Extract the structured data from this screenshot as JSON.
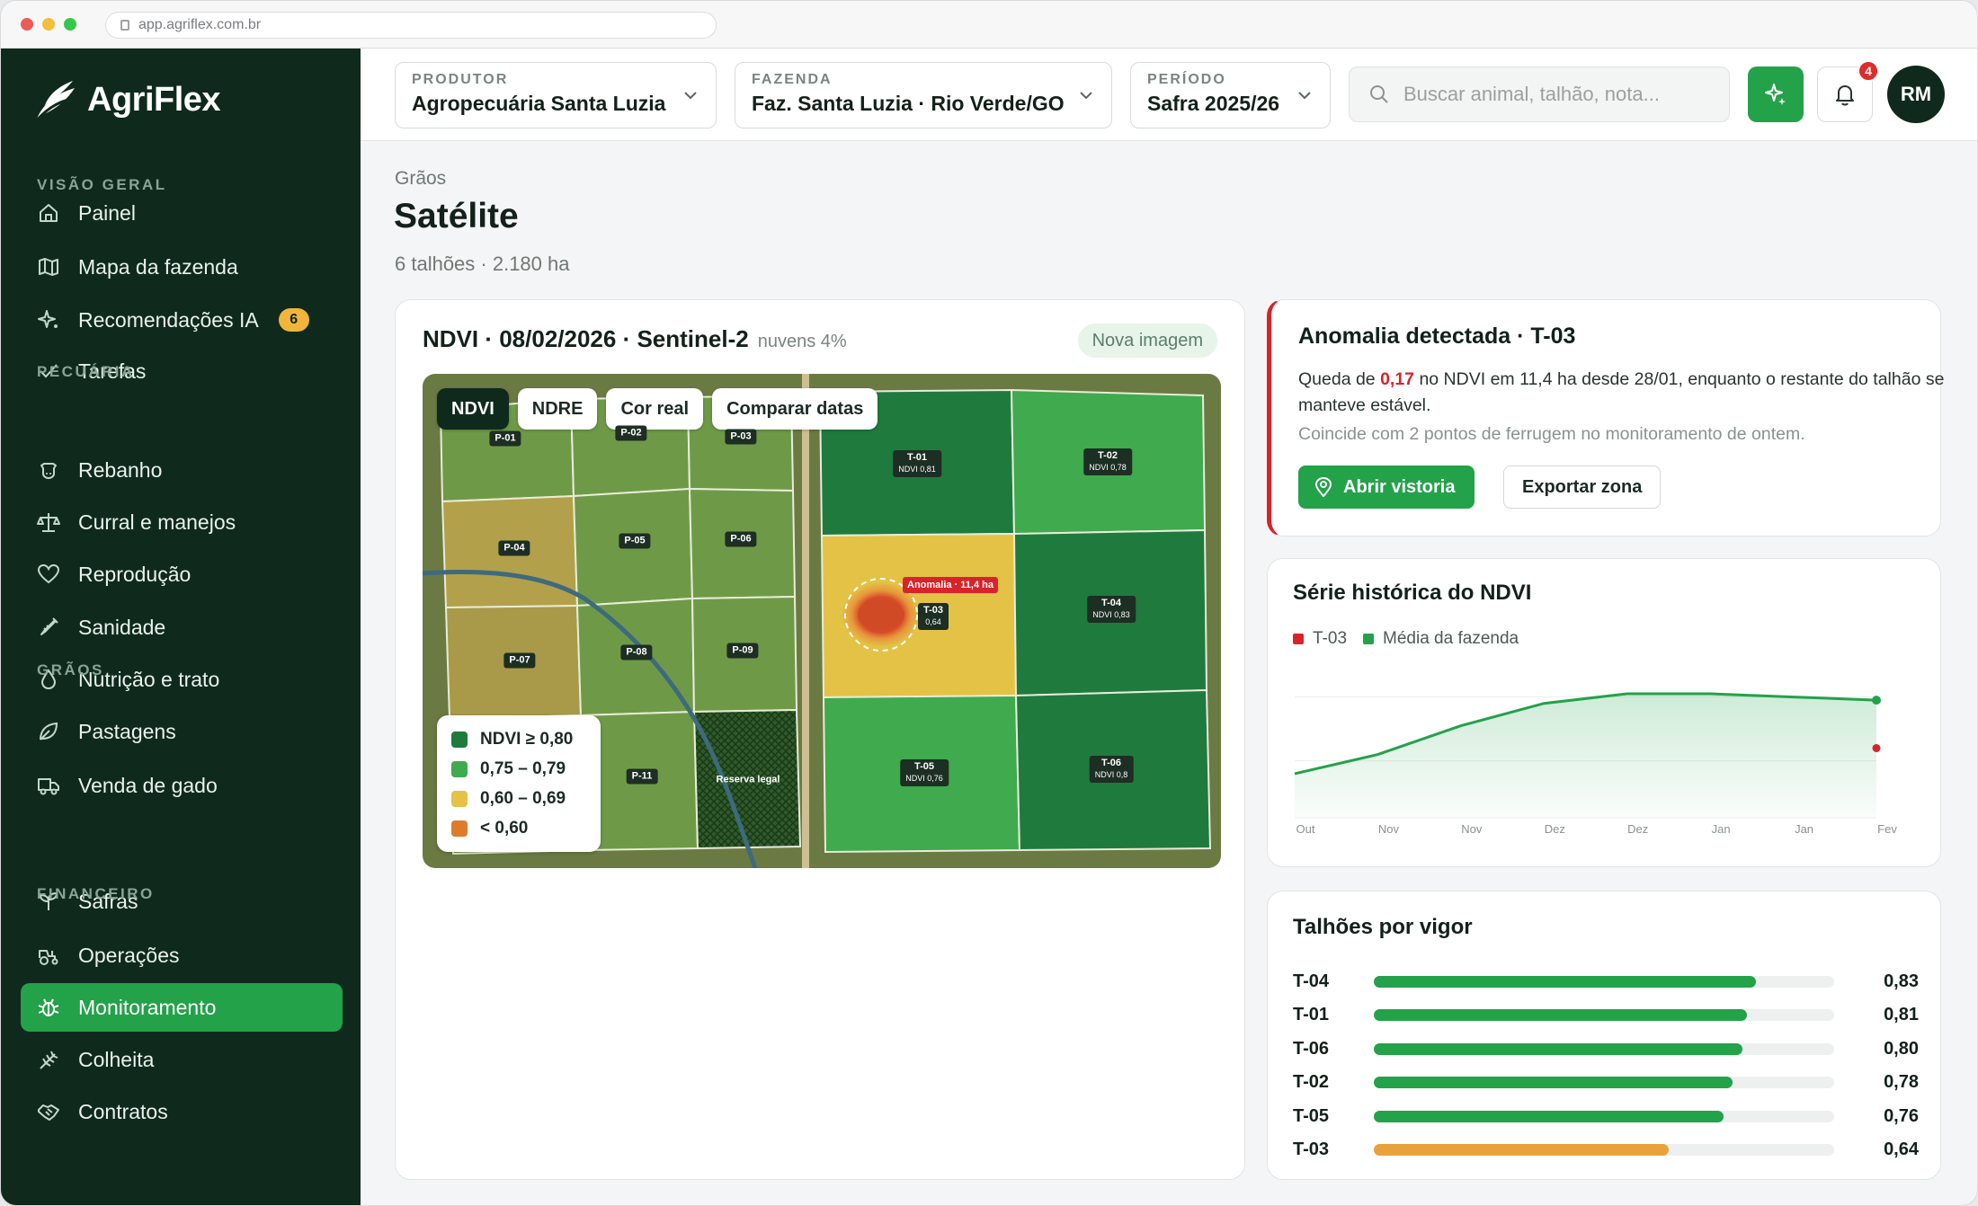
{
  "browser": {
    "url": "app.agriflex.com.br"
  },
  "app": {
    "name": "AgriFlex"
  },
  "sidebar": {
    "sections": [
      {
        "title": "VISÃO GERAL",
        "items": [
          {
            "label": "Painel",
            "icon": "home-icon"
          },
          {
            "label": "Mapa da fazenda",
            "icon": "map-icon"
          },
          {
            "label": "Recomendações IA",
            "icon": "sparkle-icon",
            "badge": "6"
          },
          {
            "label": "Tarefas",
            "icon": "check-icon"
          }
        ]
      },
      {
        "title": "PECUÁRIA",
        "items": [
          {
            "label": "Rebanho",
            "icon": "cow-icon"
          },
          {
            "label": "Curral e manejos",
            "icon": "scale-icon"
          },
          {
            "label": "Reprodução",
            "icon": "heart-icon"
          },
          {
            "label": "Sanidade",
            "icon": "syringe-icon"
          },
          {
            "label": "Nutrição e trato",
            "icon": "drop-icon"
          },
          {
            "label": "Pastagens",
            "icon": "leaf-icon"
          },
          {
            "label": "Venda de gado",
            "icon": "truck-icon"
          }
        ]
      },
      {
        "title": "GRÃOS",
        "items": [
          {
            "label": "Safras",
            "icon": "sprout-icon"
          },
          {
            "label": "Operações",
            "icon": "tractor-icon"
          },
          {
            "label": "Monitoramento",
            "icon": "bug-icon",
            "active": true
          },
          {
            "label": "Colheita",
            "icon": "wheat-icon"
          },
          {
            "label": "Contratos",
            "icon": "handshake-icon"
          }
        ]
      },
      {
        "title": "FINANCEIRO",
        "items": []
      }
    ]
  },
  "topbar": {
    "produtor": {
      "label": "PRODUTOR",
      "value": "Agropecuária Santa Luzia"
    },
    "fazenda": {
      "label": "FAZENDA",
      "value": "Faz. Santa Luzia · Rio Verde/GO"
    },
    "periodo": {
      "label": "PERÍODO",
      "value": "Safra 2025/26"
    },
    "search_placeholder": "Buscar animal, talhão, nota...",
    "notifications": "4",
    "user_initials": "RM"
  },
  "page": {
    "breadcrumb": "Grãos",
    "title": "Satélite",
    "subtitle": "6 talhões · 2.180 ha"
  },
  "map_card": {
    "title": "NDVI · 08/02/2026 · Sentinel-2",
    "clouds": "nuvens 4%",
    "new_image": "Nova imagem",
    "tabs": [
      "NDVI",
      "NDRE",
      "Cor real",
      "Comparar datas"
    ],
    "legend": [
      {
        "label": "NDVI ≥ 0,80",
        "color": "#1f7a3d"
      },
      {
        "label": "0,75 – 0,79",
        "color": "#3faa4e"
      },
      {
        "label": "0,60 – 0,69",
        "color": "#e3c246"
      },
      {
        "label": "< 0,60",
        "color": "#de7b2a"
      }
    ],
    "pasture_labels": [
      "P-01",
      "P-02",
      "P-03",
      "P-04",
      "P-05",
      "P-06",
      "P-07",
      "P-08",
      "P-09",
      "P-11",
      "Reserva legal"
    ],
    "fields": [
      {
        "name": "T-01",
        "ndvi": "NDVI 0,81"
      },
      {
        "name": "T-02",
        "ndvi": "NDVI 0,78"
      },
      {
        "name": "T-03",
        "ndvi": "0,64"
      },
      {
        "name": "T-04",
        "ndvi": "NDVI 0,83"
      },
      {
        "name": "T-05",
        "ndvi": "NDVI 0,76"
      },
      {
        "name": "T-06",
        "ndvi": "NDVI 0,8"
      }
    ],
    "anomaly_tag": "Anomalia · 11,4 ha"
  },
  "anomaly": {
    "title": "Anomalia detectada · T-03",
    "text_before": "Queda de ",
    "highlight": "0,17",
    "text_after": " no NDVI em 11,4 ha desde 28/01, enquanto o restante do talhão se manteve estável.",
    "note": "Coincide com 2 pontos de ferrugem no monitoramento de ontem.",
    "primary_button": "Abrir vistoria",
    "secondary_button": "Exportar zona"
  },
  "series_card": {
    "title": "Série histórica do NDVI",
    "legend": [
      {
        "name": "T-03",
        "color": "#d9232b"
      },
      {
        "name": "Média da fazenda",
        "color": "#23a24a"
      }
    ]
  },
  "chart_data": {
    "type": "line",
    "categories": [
      "Out",
      "Nov",
      "Nov",
      "Dez",
      "Dez",
      "Jan",
      "Jan",
      "Fev"
    ],
    "series": [
      {
        "name": "Média da fazenda",
        "values": [
          0.56,
          0.62,
          0.71,
          0.78,
          0.81,
          0.81,
          0.8,
          0.79
        ]
      },
      {
        "name": "T-03",
        "values": [
          null,
          null,
          null,
          null,
          null,
          null,
          null,
          0.64
        ]
      }
    ],
    "ylim": [
      0.45,
      0.9
    ],
    "grid": true
  },
  "vigor_card": {
    "title": "Talhões por vigor",
    "rows": [
      {
        "name": "T-04",
        "value": 0.83,
        "label": "0,83",
        "color": "#23a24a"
      },
      {
        "name": "T-01",
        "value": 0.81,
        "label": "0,81",
        "color": "#23a24a"
      },
      {
        "name": "T-06",
        "value": 0.8,
        "label": "0,80",
        "color": "#23a24a"
      },
      {
        "name": "T-02",
        "value": 0.78,
        "label": "0,78",
        "color": "#23a24a"
      },
      {
        "name": "T-05",
        "value": 0.76,
        "label": "0,76",
        "color": "#23a24a"
      },
      {
        "name": "T-03",
        "value": 0.64,
        "label": "0,64",
        "color": "#e9a23b"
      }
    ]
  }
}
